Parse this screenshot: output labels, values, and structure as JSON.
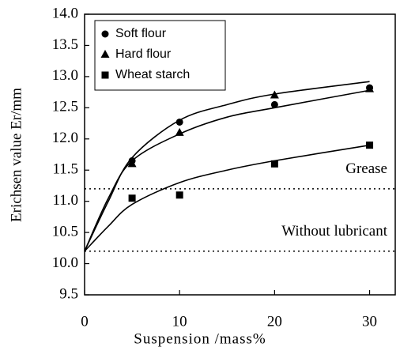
{
  "chart_data": {
    "type": "scatter",
    "xlabel": "Suspension /mass%",
    "ylabel": "Erichsen value Er/mm",
    "xlim": [
      0,
      32.7
    ],
    "xticks": [
      0,
      10,
      20,
      30
    ],
    "ylim": [
      9.5,
      14.0
    ],
    "yticks": [
      9.5,
      {
        "value": 10,
        "label": "10.0"
      },
      10.5,
      {
        "value": 11,
        "label": "11.0"
      },
      11.5,
      {
        "value": 12,
        "label": "12.0"
      },
      12.5,
      {
        "value": 13,
        "label": "13.0"
      },
      13.5,
      {
        "value": 14,
        "label": "14.0"
      }
    ],
    "legend": "upper left",
    "x": [
      5,
      10,
      20,
      30
    ],
    "curve_x": [
      0,
      2.5,
      5,
      10,
      15,
      20,
      30
    ],
    "series": [
      {
        "name": "Soft flour",
        "color": "#000000",
        "marker": "circle",
        "values": [
          11.65,
          12.27,
          12.55,
          12.82
        ],
        "curve": [
          10.2,
          11.0,
          11.7,
          12.3,
          12.55,
          12.72,
          12.92
        ]
      },
      {
        "name": "Hard flour",
        "color": "#000000",
        "marker": "triangle",
        "values": [
          11.6,
          12.1,
          12.7,
          12.8
        ],
        "curve": [
          10.2,
          11.05,
          11.65,
          12.08,
          12.35,
          12.5,
          12.78
        ]
      },
      {
        "name": "Wheat starch",
        "color": "#000000",
        "marker": "square",
        "values": [
          11.05,
          11.1,
          11.6,
          11.9
        ],
        "curve": [
          10.2,
          10.6,
          10.95,
          11.3,
          11.5,
          11.65,
          11.9
        ]
      }
    ],
    "reference_lines": [
      {
        "label": "Grease",
        "value": 11.2
      },
      {
        "label": "Without lubricant",
        "value": 10.2
      }
    ]
  }
}
